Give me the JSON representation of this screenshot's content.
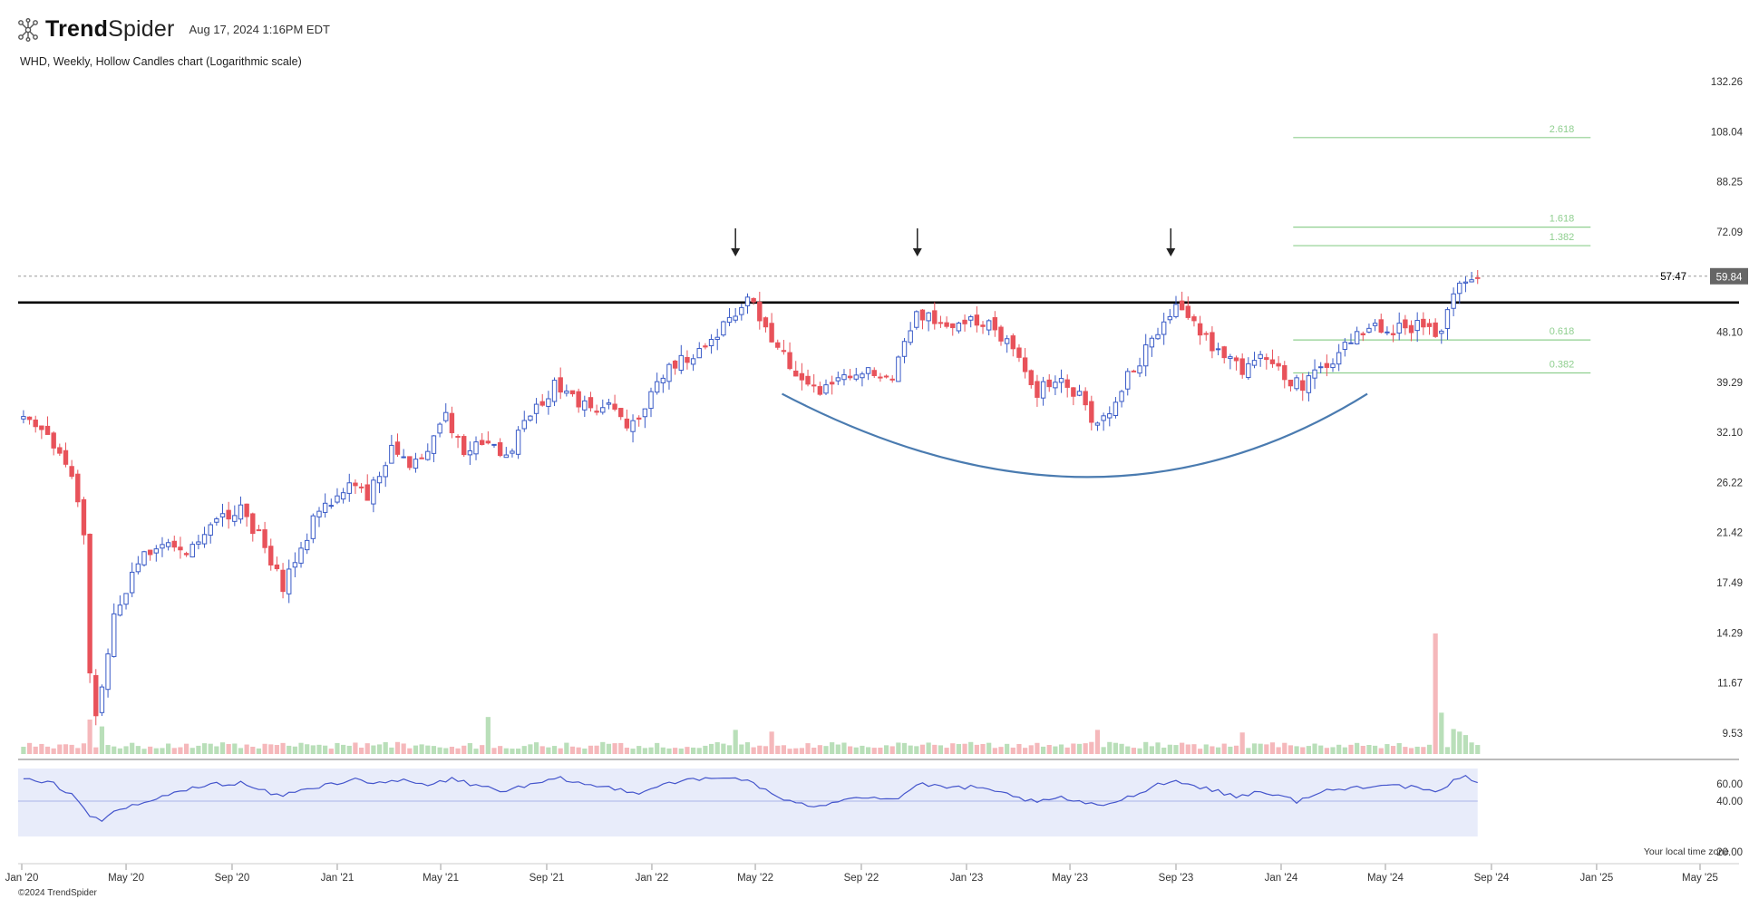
{
  "header": {
    "brand_bold": "Trend",
    "brand_light": "Spider",
    "timestamp": "Aug 17, 2024 1:16PM EDT",
    "chart_description": "WHD, Weekly, Hollow Candles chart (Logarithmic scale)"
  },
  "footer": {
    "copyright": "©2024 TrendSpider",
    "timezone_note": "Your local time zone"
  },
  "colors": {
    "up": "#3a5bc7",
    "down": "#e8525a",
    "up_volume": "#b9dfb9",
    "down_volume": "#f5b8bb",
    "fib": "#8fcf8f",
    "rsi": "#4455cc",
    "rsi_band": "#e8ecfa",
    "arc": "#4a7bb0",
    "resistance": "#000000"
  },
  "chart_data": {
    "type": "candlestick",
    "ticker": "WHD",
    "interval": "Weekly",
    "scale": "log",
    "x_start": "2020-01-01",
    "y_ticks": [
      132.26,
      108.04,
      88.25,
      72.09,
      48.1,
      39.29,
      32.1,
      26.22,
      21.42,
      17.49,
      14.29,
      11.67,
      9.53
    ],
    "x_ticks": [
      "Jan '20",
      "May '20",
      "Sep '20",
      "Jan '21",
      "May '21",
      "Sep '21",
      "Jan '22",
      "May '22",
      "Sep '22",
      "Jan '23",
      "May '23",
      "Sep '23",
      "Jan '24",
      "May '24",
      "Sep '24",
      "Jan '25",
      "May '25"
    ],
    "last_price": "59.84",
    "resistance_label": "57.47",
    "resistance_price": 54.2,
    "fib_levels": [
      {
        "label": "2.618",
        "price": 105.5
      },
      {
        "label": "1.618",
        "price": 73.5
      },
      {
        "label": "1.382",
        "price": 68.2
      },
      {
        "label": "0.618",
        "price": 46.6
      },
      {
        "label": "0.382",
        "price": 40.8
      }
    ],
    "fib_start": "2024-01-15",
    "fib_end": "2024-12-25",
    "arrow_dates": [
      "2022-04-08",
      "2022-11-05",
      "2023-08-26"
    ],
    "rounded_bottom": {
      "start_date": "2022-06-01",
      "low_date": "2023-06-05",
      "end_date": "2024-04-10",
      "start_price": 37.5,
      "low_price": 26.8,
      "end_price": 37.5
    },
    "close_anchors": [
      [
        "2020-01-03",
        33.5
      ],
      [
        "2020-02-15",
        29.5
      ],
      [
        "2020-03-01",
        27.0
      ],
      [
        "2020-03-12",
        22.0
      ],
      [
        "2020-03-20",
        12.5
      ],
      [
        "2020-03-27",
        10.2
      ],
      [
        "2020-04-03",
        11.5
      ],
      [
        "2020-04-17",
        15.5
      ],
      [
        "2020-05-15",
        19.0
      ],
      [
        "2020-06-12",
        21.0
      ],
      [
        "2020-07-10",
        19.5
      ],
      [
        "2020-08-14",
        22.5
      ],
      [
        "2020-09-11",
        24.0
      ],
      [
        "2020-10-16",
        19.0
      ],
      [
        "2020-10-30",
        17.0
      ],
      [
        "2020-11-20",
        20.5
      ],
      [
        "2020-12-18",
        24.0
      ],
      [
        "2021-01-15",
        26.0
      ],
      [
        "2021-02-05",
        24.5
      ],
      [
        "2021-03-05",
        30.0
      ],
      [
        "2021-04-02",
        28.0
      ],
      [
        "2021-05-07",
        34.0
      ],
      [
        "2021-05-28",
        30.0
      ],
      [
        "2021-06-25",
        31.0
      ],
      [
        "2021-07-16",
        28.5
      ],
      [
        "2021-08-13",
        34.5
      ],
      [
        "2021-09-10",
        38.5
      ],
      [
        "2021-10-08",
        36.0
      ],
      [
        "2021-11-12",
        35.5
      ],
      [
        "2021-12-10",
        33.0
      ],
      [
        "2022-01-14",
        41.0
      ],
      [
        "2022-02-11",
        43.0
      ],
      [
        "2022-03-11",
        47.0
      ],
      [
        "2022-04-08",
        52.0
      ],
      [
        "2022-04-22",
        55.0
      ],
      [
        "2022-05-20",
        47.0
      ],
      [
        "2022-06-17",
        40.0
      ],
      [
        "2022-07-15",
        37.0
      ],
      [
        "2022-08-12",
        41.0
      ],
      [
        "2022-09-16",
        41.5
      ],
      [
        "2022-10-07",
        39.0
      ],
      [
        "2022-10-21",
        46.0
      ],
      [
        "2022-11-04",
        53.0
      ],
      [
        "2022-11-25",
        50.0
      ],
      [
        "2022-12-16",
        48.0
      ],
      [
        "2023-01-06",
        52.0
      ],
      [
        "2023-02-03",
        48.0
      ],
      [
        "2023-03-03",
        43.0
      ],
      [
        "2023-03-24",
        38.0
      ],
      [
        "2023-04-14",
        40.5
      ],
      [
        "2023-05-12",
        37.0
      ],
      [
        "2023-06-02",
        32.5
      ],
      [
        "2023-06-23",
        37.0
      ],
      [
        "2023-07-21",
        43.0
      ],
      [
        "2023-08-18",
        50.5
      ],
      [
        "2023-09-01",
        53.0
      ],
      [
        "2023-09-22",
        49.0
      ],
      [
        "2023-10-20",
        45.0
      ],
      [
        "2023-11-17",
        41.0
      ],
      [
        "2023-12-08",
        44.0
      ],
      [
        "2024-01-05",
        40.5
      ],
      [
        "2024-01-26",
        38.5
      ],
      [
        "2024-02-16",
        41.5
      ],
      [
        "2024-03-15",
        45.5
      ],
      [
        "2024-04-19",
        49.0
      ],
      [
        "2024-05-24",
        48.5
      ],
      [
        "2024-06-14",
        50.0
      ],
      [
        "2024-06-28",
        47.5
      ],
      [
        "2024-07-12",
        52.0
      ],
      [
        "2024-07-26",
        59.0
      ],
      [
        "2024-08-09",
        58.0
      ],
      [
        "2024-08-16",
        59.84
      ]
    ],
    "volume": {
      "baseline": 1.0,
      "spikes": [
        [
          "2020-03-20",
          4.0
        ],
        [
          "2020-04-03",
          3.2
        ],
        [
          "2021-06-25",
          4.3
        ],
        [
          "2022-04-08",
          2.8
        ],
        [
          "2022-05-20",
          2.6
        ],
        [
          "2023-06-02",
          2.8
        ],
        [
          "2023-11-17",
          2.5
        ],
        [
          "2024-06-28",
          14.0
        ],
        [
          "2024-07-05",
          4.8
        ],
        [
          "2024-07-19",
          2.9
        ],
        [
          "2024-07-26",
          2.6
        ],
        [
          "2024-08-02",
          2.2
        ]
      ]
    },
    "rsi": {
      "ticks": [
        60.0,
        40.0,
        20.0
      ],
      "anchors": [
        [
          "2020-01-03",
          65
        ],
        [
          "2020-02-07",
          60
        ],
        [
          "2020-02-28",
          48
        ],
        [
          "2020-03-20",
          24
        ],
        [
          "2020-04-03",
          18
        ],
        [
          "2020-04-24",
          30
        ],
        [
          "2020-05-29",
          40
        ],
        [
          "2020-07-03",
          52
        ],
        [
          "2020-08-14",
          60
        ],
        [
          "2020-09-11",
          61
        ],
        [
          "2020-10-23",
          46
        ],
        [
          "2020-11-20",
          52
        ],
        [
          "2020-12-25",
          60
        ],
        [
          "2021-01-22",
          66
        ],
        [
          "2021-02-19",
          60
        ],
        [
          "2021-03-19",
          64
        ],
        [
          "2021-04-16",
          58
        ],
        [
          "2021-05-14",
          66
        ],
        [
          "2021-06-11",
          58
        ],
        [
          "2021-07-16",
          52
        ],
        [
          "2021-08-20",
          60
        ],
        [
          "2021-09-17",
          66
        ],
        [
          "2021-10-22",
          58
        ],
        [
          "2021-11-19",
          55
        ],
        [
          "2021-12-17",
          50
        ],
        [
          "2022-01-21",
          62
        ],
        [
          "2022-02-25",
          65
        ],
        [
          "2022-04-01",
          67
        ],
        [
          "2022-04-22",
          65
        ],
        [
          "2022-05-20",
          48
        ],
        [
          "2022-06-17",
          36
        ],
        [
          "2022-07-15",
          35
        ],
        [
          "2022-08-19",
          45
        ],
        [
          "2022-09-23",
          44
        ],
        [
          "2022-10-14",
          42
        ],
        [
          "2022-11-04",
          60
        ],
        [
          "2022-12-02",
          56
        ],
        [
          "2023-01-06",
          56
        ],
        [
          "2023-02-17",
          48
        ],
        [
          "2023-03-24",
          38
        ],
        [
          "2023-04-21",
          44
        ],
        [
          "2023-06-02",
          34
        ],
        [
          "2023-07-07",
          44
        ],
        [
          "2023-08-11",
          60
        ],
        [
          "2023-09-01",
          63
        ],
        [
          "2023-10-06",
          55
        ],
        [
          "2023-11-10",
          45
        ],
        [
          "2023-12-08",
          52
        ],
        [
          "2024-01-19",
          40
        ],
        [
          "2024-02-23",
          52
        ],
        [
          "2024-03-29",
          56
        ],
        [
          "2024-04-26",
          60
        ],
        [
          "2024-05-31",
          56
        ],
        [
          "2024-06-28",
          49
        ],
        [
          "2024-07-19",
          63
        ],
        [
          "2024-08-02",
          68
        ],
        [
          "2024-08-16",
          63
        ]
      ]
    }
  }
}
